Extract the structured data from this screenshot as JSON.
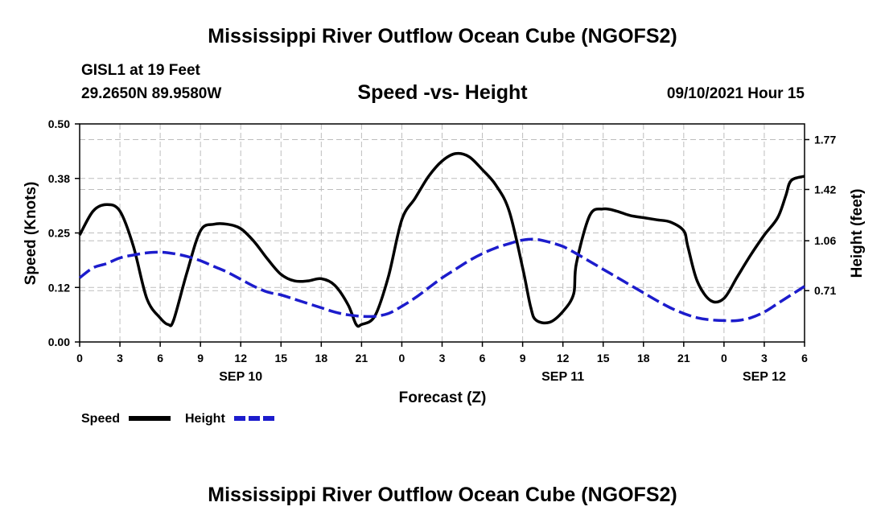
{
  "header": {
    "title": "Mississippi River Outflow Ocean Cube (NGOFS2)",
    "station": "GISL1 at 19 Feet",
    "coords": "29.2650N  89.9580W",
    "subtitle": "Speed -vs- Height",
    "datetime": "09/10/2021 Hour 15"
  },
  "footer": {
    "title": "Mississippi River Outflow Ocean Cube (NGOFS2)"
  },
  "chart_data": {
    "type": "line",
    "xlabel": "Forecast (Z)",
    "ylabel": "Speed (Knots)",
    "y2label": "Height (feet)",
    "xlim": [
      0,
      54
    ],
    "ylim": [
      0,
      0.5
    ],
    "y2lim": [
      0.35,
      1.88
    ],
    "x_ticks": [
      0,
      3,
      6,
      9,
      12,
      15,
      18,
      21,
      24,
      27,
      30,
      33,
      36,
      39,
      42,
      45,
      48,
      51,
      54
    ],
    "x_tick_labels": [
      "0",
      "3",
      "6",
      "9",
      "12",
      "15",
      "18",
      "21",
      "0",
      "3",
      "6",
      "9",
      "12",
      "15",
      "18",
      "21",
      "0",
      "3",
      "6"
    ],
    "y_ticks": [
      0,
      0.125,
      0.25,
      0.375,
      0.5
    ],
    "y_tick_labels": [
      "0.00",
      "0.12",
      "0.25",
      "0.38",
      "0.50"
    ],
    "y2_ticks": [
      0.71,
      1.06,
      1.42,
      1.77
    ],
    "y2_tick_labels": [
      "0.71",
      "1.06",
      "1.42",
      "1.77"
    ],
    "date_labels": [
      {
        "x": 12,
        "label": "SEP 10"
      },
      {
        "x": 36,
        "label": "SEP 11"
      },
      {
        "x": 51,
        "label": "SEP 12"
      }
    ],
    "grid": true,
    "series": [
      {
        "name": "Speed",
        "axis": "left",
        "color": "#000000",
        "dash": "solid",
        "x": [
          0,
          1,
          2,
          3,
          4,
          5,
          6,
          6.6,
          7,
          8,
          9,
          10,
          11,
          12,
          13,
          14,
          15,
          16,
          17,
          18,
          19,
          20,
          20.6,
          21,
          22,
          23,
          24,
          25,
          26,
          27,
          28,
          29,
          30,
          31,
          32,
          33,
          33.6,
          34,
          35,
          36,
          36.8,
          37,
          38,
          39,
          40,
          41,
          42,
          43,
          44,
          45,
          45.3,
          46,
          47,
          48,
          49,
          50,
          51,
          52,
          52.6,
          53,
          54
        ],
        "values": [
          0.245,
          0.3,
          0.315,
          0.3,
          0.22,
          0.1,
          0.055,
          0.04,
          0.05,
          0.16,
          0.255,
          0.27,
          0.27,
          0.26,
          0.23,
          0.19,
          0.155,
          0.14,
          0.14,
          0.145,
          0.13,
          0.085,
          0.04,
          0.04,
          0.06,
          0.15,
          0.28,
          0.33,
          0.38,
          0.415,
          0.432,
          0.425,
          0.395,
          0.36,
          0.3,
          0.17,
          0.08,
          0.05,
          0.045,
          0.07,
          0.11,
          0.18,
          0.29,
          0.305,
          0.3,
          0.29,
          0.285,
          0.28,
          0.275,
          0.255,
          0.22,
          0.14,
          0.095,
          0.1,
          0.15,
          0.2,
          0.245,
          0.285,
          0.335,
          0.37,
          0.38
        ]
      },
      {
        "name": "Height",
        "axis": "right",
        "color": "#1c1ccc",
        "dash": "dashed",
        "x": [
          0,
          1,
          2,
          3,
          4,
          5,
          6,
          7,
          8,
          9,
          10,
          11,
          12,
          13,
          14,
          15,
          16,
          17,
          18,
          19,
          20,
          21,
          22,
          23,
          24,
          25,
          26,
          27,
          28,
          29,
          30,
          31,
          32,
          33,
          34,
          35,
          36,
          37,
          38,
          39,
          40,
          41,
          42,
          43,
          44,
          45,
          46,
          47,
          48,
          49,
          50,
          51,
          52,
          53,
          54
        ],
        "values": [
          0.8,
          0.87,
          0.9,
          0.94,
          0.96,
          0.975,
          0.98,
          0.97,
          0.95,
          0.92,
          0.88,
          0.84,
          0.79,
          0.74,
          0.7,
          0.68,
          0.65,
          0.62,
          0.59,
          0.56,
          0.54,
          0.53,
          0.53,
          0.55,
          0.6,
          0.66,
          0.73,
          0.8,
          0.86,
          0.92,
          0.97,
          1.01,
          1.04,
          1.065,
          1.07,
          1.05,
          1.02,
          0.97,
          0.915,
          0.86,
          0.805,
          0.75,
          0.695,
          0.64,
          0.59,
          0.55,
          0.52,
          0.505,
          0.5,
          0.5,
          0.52,
          0.56,
          0.62,
          0.68,
          0.74
        ]
      }
    ]
  }
}
